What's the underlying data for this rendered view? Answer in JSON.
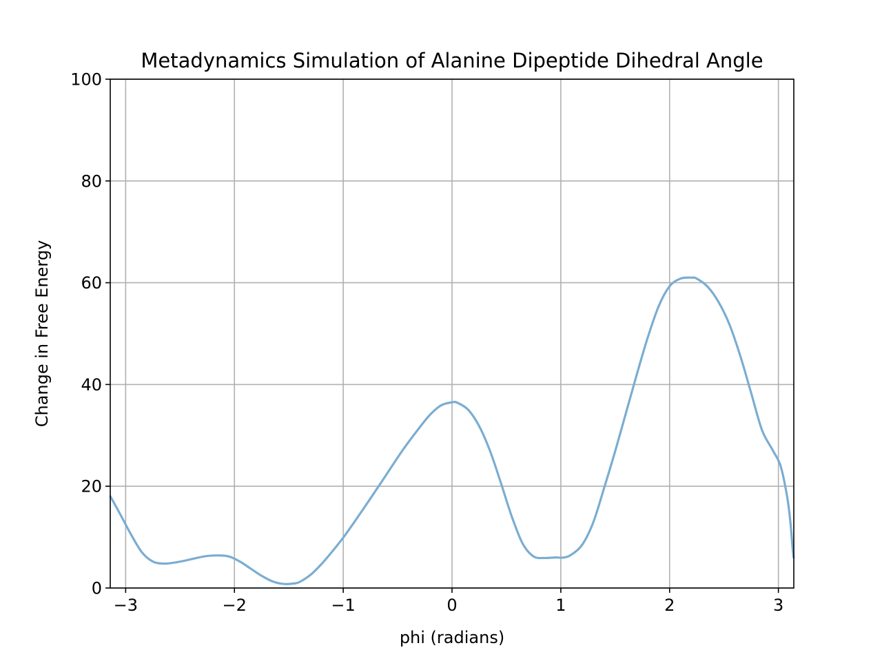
{
  "chart_data": {
    "type": "line",
    "title": "Metadynamics Simulation of Alanine Dipeptide Dihedral Angle",
    "xlabel": "phi (radians)",
    "ylabel": "Change in Free Energy",
    "xlim": [
      -3.14159,
      3.14159
    ],
    "ylim": [
      0,
      100
    ],
    "xticks": [
      -3,
      -2,
      -1,
      0,
      1,
      2,
      3
    ],
    "xtick_labels": [
      "−3",
      "−2",
      "−1",
      "0",
      "1",
      "2",
      "3"
    ],
    "yticks": [
      0,
      20,
      40,
      60,
      80,
      100
    ],
    "ytick_labels": [
      "0",
      "20",
      "40",
      "60",
      "80",
      "100"
    ],
    "grid": true,
    "legend": "none",
    "series": [
      {
        "color": "#7aadd2",
        "x": [
          -3.14,
          -3.05,
          -2.95,
          -2.85,
          -2.75,
          -2.65,
          -2.55,
          -2.45,
          -2.35,
          -2.25,
          -2.15,
          -2.05,
          -1.95,
          -1.85,
          -1.75,
          -1.65,
          -1.55,
          -1.45,
          -1.4,
          -1.3,
          -1.2,
          -1.1,
          -1.0,
          -0.9,
          -0.75,
          -0.6,
          -0.45,
          -0.3,
          -0.2,
          -0.1,
          0.0,
          0.05,
          0.15,
          0.25,
          0.35,
          0.45,
          0.55,
          0.65,
          0.75,
          0.85,
          0.95,
          1.03,
          1.1,
          1.2,
          1.3,
          1.4,
          1.5,
          1.6,
          1.7,
          1.8,
          1.9,
          2.0,
          2.1,
          2.2,
          2.25,
          2.35,
          2.45,
          2.55,
          2.65,
          2.75,
          2.85,
          2.95,
          3.02,
          3.08,
          3.11,
          3.13,
          3.14
        ],
        "y": [
          18.0,
          14.5,
          10.5,
          7.0,
          5.2,
          4.8,
          5.0,
          5.4,
          5.9,
          6.3,
          6.4,
          6.2,
          5.2,
          3.8,
          2.4,
          1.3,
          0.8,
          0.9,
          1.2,
          2.6,
          4.7,
          7.2,
          9.9,
          12.9,
          17.6,
          22.4,
          27.2,
          31.5,
          34.1,
          35.9,
          36.5,
          36.4,
          35.0,
          31.8,
          26.9,
          20.6,
          14.0,
          8.7,
          6.2,
          5.9,
          6.0,
          6.0,
          6.6,
          8.6,
          13.0,
          19.8,
          26.9,
          34.5,
          42.1,
          49.3,
          55.4,
          59.3,
          60.8,
          61.0,
          60.8,
          59.2,
          56.2,
          51.8,
          45.6,
          38.3,
          31.0,
          27.0,
          24.0,
          18.0,
          13.0,
          8.0,
          6.0
        ]
      }
    ]
  }
}
